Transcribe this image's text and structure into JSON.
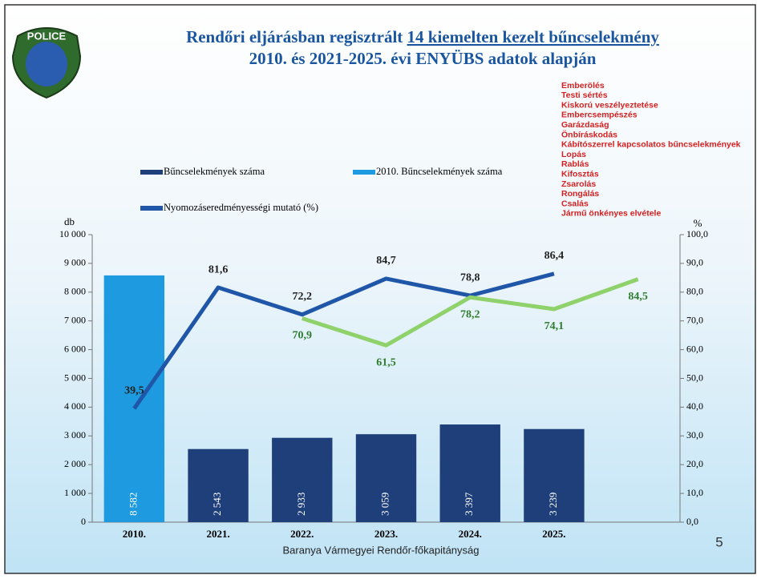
{
  "chart_data": {
    "type": "bar",
    "title_parts": [
      "Rendőri eljárásban regisztrált ",
      "14 kiemelten kezelt bűncselekmény",
      "2010. és 2021-2025. évi ENYÜBS adatok alapján"
    ],
    "badge": "POLICE",
    "crime_list": [
      "Emberölés",
      "Testi sértés",
      "Kiskorú veszélyeztetése",
      "Embercsempészés",
      "Garázdaság",
      "Önbíráskodás",
      "Kábítószerrel kapcsolatos bűncselekmények",
      "Lopás",
      "Rablás",
      "Kifosztás",
      "Zsarolás",
      "Rongálás",
      "Csalás",
      "Jármű önkényes elvétele"
    ],
    "ylabel": "db",
    "y2label": "%",
    "footer": "Baranya Vármegyei Rendőr-főkapitányság",
    "page_number": "5",
    "categories": [
      "2010.",
      "2021.",
      "2022.",
      "2023.",
      "2024.",
      "2025.",
      null
    ],
    "series": [
      {
        "name": "Bűncselekmények száma",
        "type": "bar",
        "color": "#1f3f7a",
        "values": [
          null,
          2543,
          2933,
          3059,
          3397,
          3239,
          null
        ],
        "value_labels": [
          null,
          "2 543",
          "2 933",
          "3 059",
          "3 397",
          "3 239",
          null
        ]
      },
      {
        "name": "2010. Bűncselekmények száma",
        "type": "bar",
        "color": "#1e9be0",
        "values": [
          8582,
          null,
          null,
          null,
          null,
          null,
          null
        ],
        "value_labels": [
          "8 582",
          null,
          null,
          null,
          null,
          null,
          null
        ]
      },
      {
        "name": "Nyomozáseredményességi mutató (%)",
        "type": "line",
        "axis": "y2",
        "color": "#1f56a8",
        "values": [
          39.5,
          81.6,
          72.2,
          84.7,
          78.8,
          86.4,
          null
        ],
        "value_labels": [
          "39,5",
          "81,6",
          "72,2",
          "84,7",
          "78,8",
          "86,4",
          null
        ]
      },
      {
        "type": "line",
        "axis": "y2",
        "color": "#8fd16a",
        "values": [
          null,
          null,
          70.9,
          61.5,
          78.2,
          74.1,
          84.5
        ],
        "value_labels": [
          null,
          null,
          "70,9",
          "61,5",
          "78,2",
          "74,1",
          "84,5"
        ]
      }
    ],
    "ylim": [
      0,
      10000
    ],
    "yticks": [
      0,
      {
        "value": 1000,
        "label": "1 000"
      },
      {
        "value": 2000,
        "label": "2 000"
      },
      {
        "value": 3000,
        "label": "3 000"
      },
      {
        "value": 4000,
        "label": "4 000"
      },
      {
        "value": 5000,
        "label": "5 000"
      },
      {
        "value": 6000,
        "label": "6 000"
      },
      {
        "value": 7000,
        "label": "7 000"
      },
      {
        "value": 8000,
        "label": "8 000"
      },
      {
        "value": 9000,
        "label": "9 000"
      },
      {
        "value": 10000,
        "label": "10 000"
      }
    ],
    "y2lim": [
      0,
      100
    ],
    "y2ticks": [
      {
        "value": 0,
        "label": "0,0"
      },
      {
        "value": 10,
        "label": "10,0"
      },
      {
        "value": 20,
        "label": "20,0"
      },
      {
        "value": 30,
        "label": "30,0"
      },
      {
        "value": 40,
        "label": "40,0"
      },
      {
        "value": 50,
        "label": "50,0"
      },
      {
        "value": 60,
        "label": "60,0"
      },
      {
        "value": 70,
        "label": "70,0"
      },
      {
        "value": 80,
        "label": "80,0"
      },
      {
        "value": 90,
        "label": "90,0"
      },
      {
        "value": 100,
        "label": "100,0"
      }
    ]
  }
}
